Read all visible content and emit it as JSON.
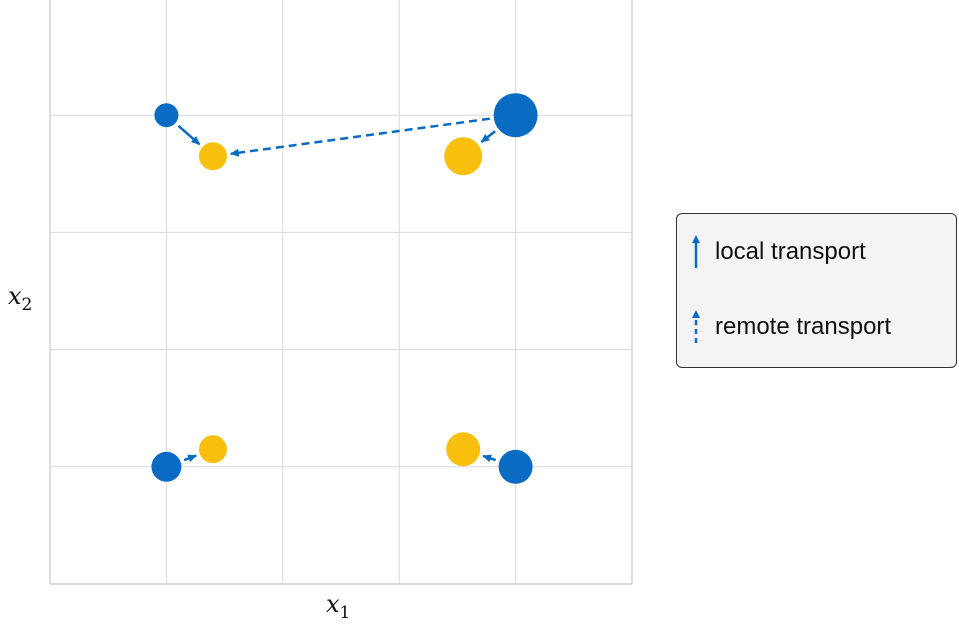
{
  "axes": {
    "xlabel": "x",
    "xlabel_sub": "1",
    "ylabel": "x",
    "ylabel_sub": "2"
  },
  "colors": {
    "source": "#0a6bc2",
    "target": "#f8c00c",
    "grid": "#d9d9d9",
    "frame": "#c8c8c8"
  },
  "legend": {
    "items": [
      {
        "label": "local transport",
        "style": "solid"
      },
      {
        "label": "remote transport",
        "style": "dashed"
      }
    ]
  },
  "chart_data": {
    "type": "scatter",
    "grid": true,
    "xlim": [
      0,
      5
    ],
    "ylim": [
      0,
      5
    ],
    "source_points": [
      {
        "x": 1.0,
        "y": 4.0,
        "size": 0.6
      },
      {
        "x": 4.0,
        "y": 4.0,
        "size": 1.6
      },
      {
        "x": 1.0,
        "y": 1.0,
        "size": 0.9
      },
      {
        "x": 4.0,
        "y": 1.0,
        "size": 1.1
      }
    ],
    "target_points": [
      {
        "x": 1.4,
        "y": 3.65,
        "size": 0.8
      },
      {
        "x": 3.55,
        "y": 3.65,
        "size": 1.3
      },
      {
        "x": 1.4,
        "y": 1.15,
        "size": 0.8
      },
      {
        "x": 3.55,
        "y": 1.15,
        "size": 1.1
      }
    ],
    "transports": [
      {
        "from": 0,
        "to": 0,
        "style": "solid"
      },
      {
        "from": 1,
        "to": 1,
        "style": "solid"
      },
      {
        "from": 1,
        "to": 0,
        "style": "dashed"
      },
      {
        "from": 2,
        "to": 2,
        "style": "solid"
      },
      {
        "from": 3,
        "to": 3,
        "style": "solid"
      }
    ]
  }
}
